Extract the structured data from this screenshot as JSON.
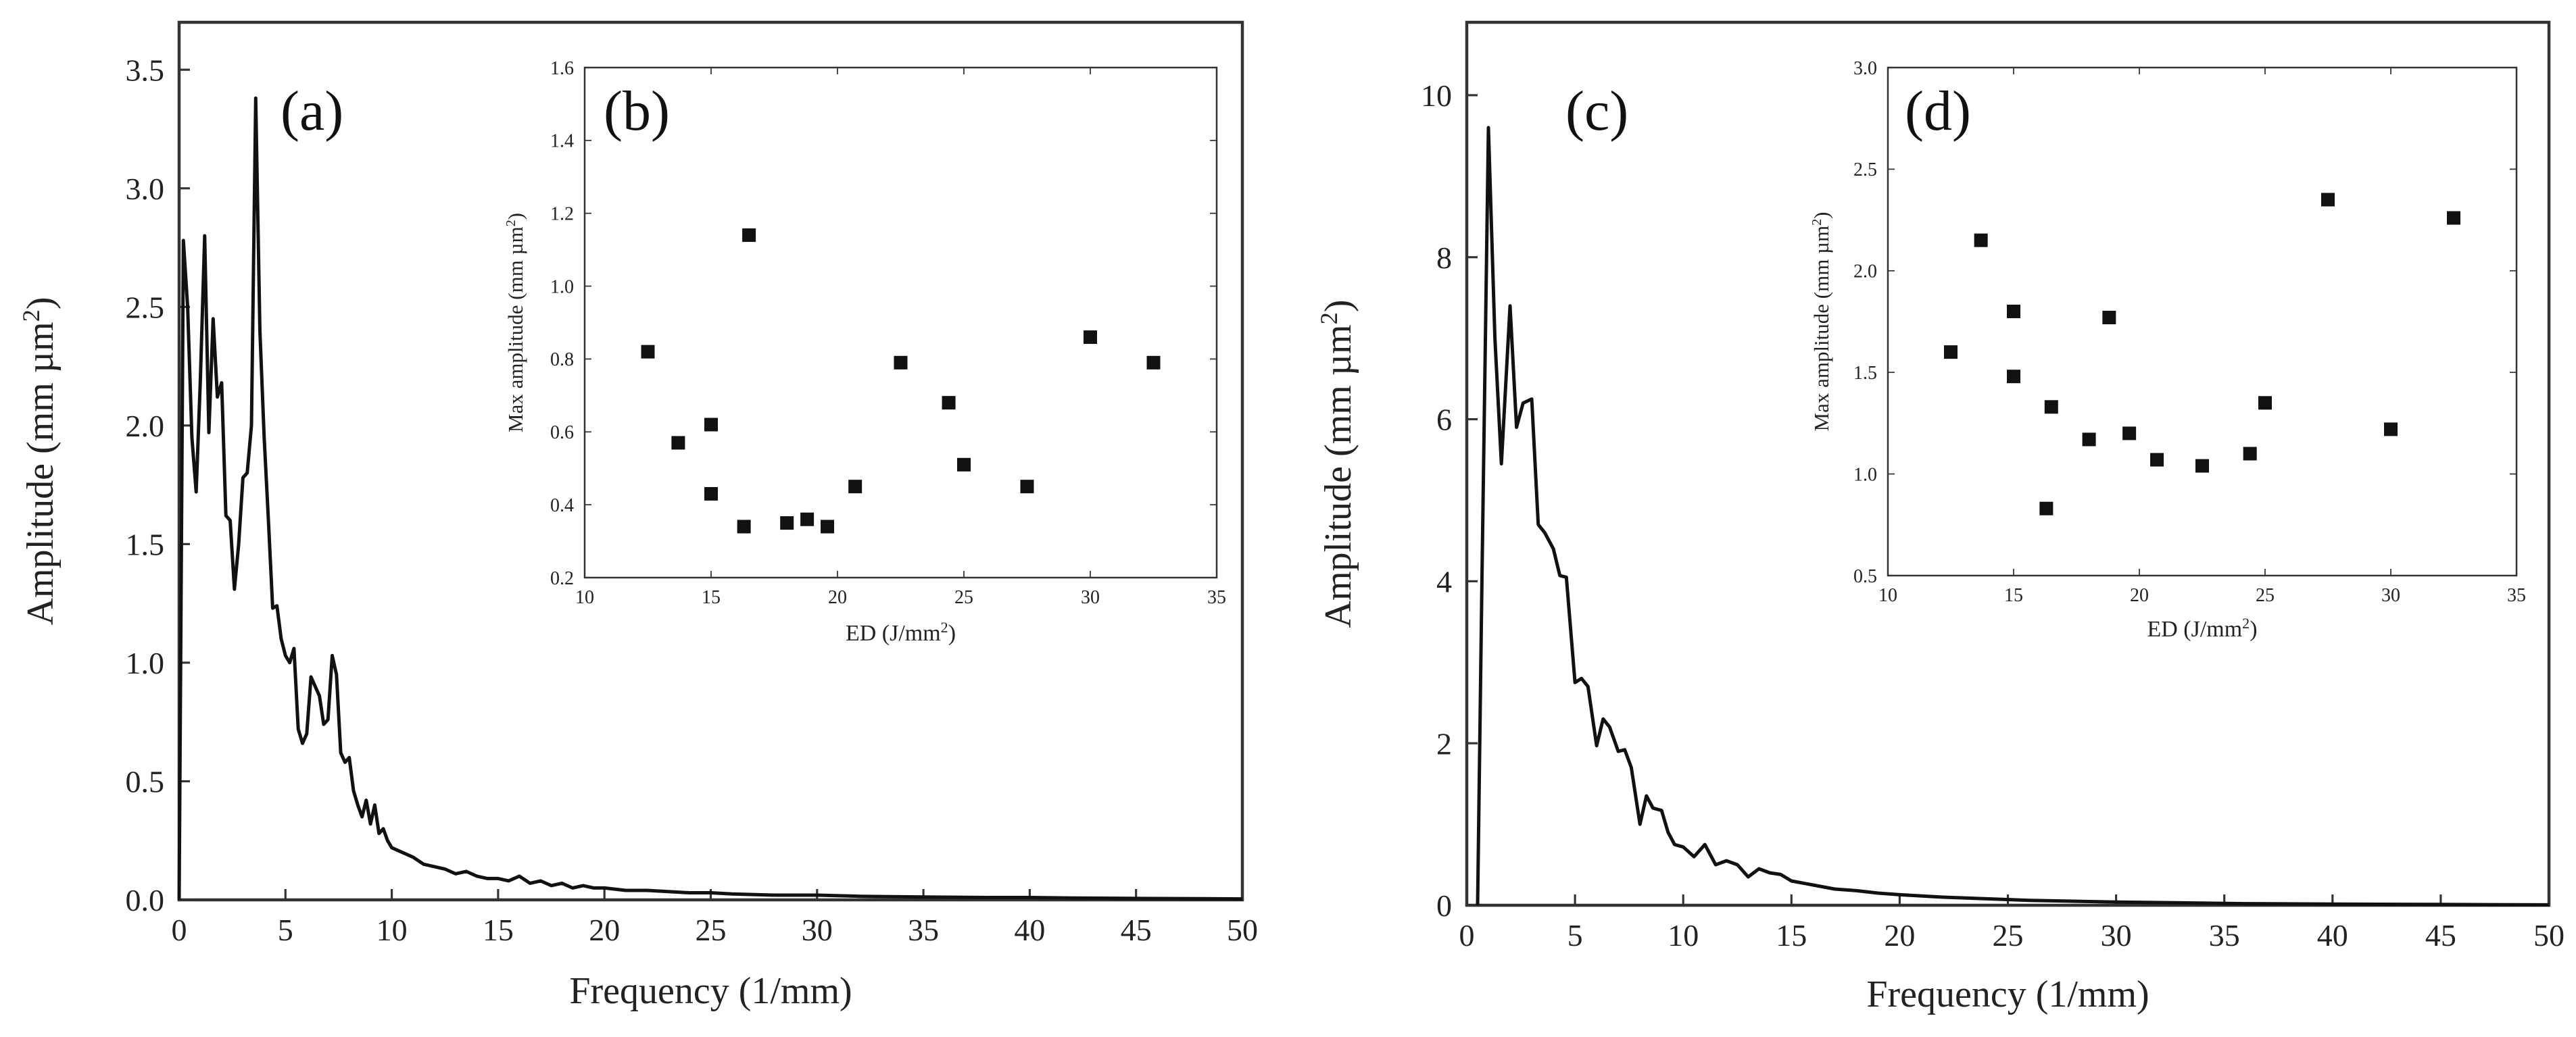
{
  "chart_data": [
    {
      "id": "a",
      "type": "line",
      "panel_label": "(a)",
      "xlabel": "Frequency (1/mm)",
      "ylabel_main": "Amplitude (mm µm",
      "ylabel_sup": "2",
      "ylabel_close": ")",
      "xlim": [
        0,
        50
      ],
      "ylim": [
        0,
        3.7
      ],
      "xticks": [
        0,
        5,
        10,
        15,
        20,
        25,
        30,
        35,
        40,
        45,
        50
      ],
      "yticks": [
        "0.0",
        "0.5",
        "1.0",
        "1.5",
        "2.0",
        "2.5",
        "3.0",
        "3.5"
      ],
      "series": [
        {
          "name": "spectrum",
          "x": [
            0.0,
            0.2,
            0.4,
            0.6,
            0.8,
            1.0,
            1.2,
            1.4,
            1.6,
            1.8,
            2.0,
            2.2,
            2.4,
            2.6,
            2.8,
            3.0,
            3.2,
            3.4,
            3.6,
            3.8,
            4.0,
            4.2,
            4.4,
            4.6,
            4.8,
            5.0,
            5.2,
            5.4,
            5.6,
            5.8,
            6.0,
            6.2,
            6.4,
            6.6,
            6.8,
            7.0,
            7.2,
            7.4,
            7.6,
            7.8,
            8.0,
            8.2,
            8.4,
            8.6,
            8.8,
            9.0,
            9.2,
            9.4,
            9.6,
            9.8,
            10.0,
            10.5,
            11.0,
            11.5,
            12.0,
            12.5,
            13.0,
            13.5,
            14.0,
            14.5,
            15.0,
            15.5,
            16.0,
            16.5,
            17.0,
            17.5,
            18.0,
            18.5,
            19.0,
            19.5,
            20.0,
            21.0,
            22.0,
            23.0,
            24.0,
            25.0,
            26.0,
            28.0,
            30.0,
            32.0,
            35.0,
            38.0,
            40.0,
            42.0,
            45.0,
            48.0,
            50.0
          ],
          "y": [
            0.0,
            2.78,
            2.5,
            1.95,
            1.72,
            2.2,
            2.8,
            1.97,
            2.45,
            2.12,
            2.18,
            1.62,
            1.6,
            1.31,
            1.5,
            1.78,
            1.8,
            2.0,
            3.38,
            2.4,
            1.95,
            1.6,
            1.23,
            1.24,
            1.1,
            1.03,
            1.0,
            1.06,
            0.72,
            0.66,
            0.7,
            0.94,
            0.9,
            0.86,
            0.74,
            0.76,
            1.03,
            0.95,
            0.62,
            0.58,
            0.6,
            0.46,
            0.4,
            0.35,
            0.42,
            0.32,
            0.4,
            0.28,
            0.3,
            0.25,
            0.22,
            0.2,
            0.18,
            0.15,
            0.14,
            0.13,
            0.11,
            0.12,
            0.1,
            0.09,
            0.09,
            0.08,
            0.1,
            0.07,
            0.08,
            0.06,
            0.07,
            0.05,
            0.06,
            0.05,
            0.05,
            0.04,
            0.04,
            0.035,
            0.03,
            0.03,
            0.025,
            0.02,
            0.02,
            0.015,
            0.012,
            0.01,
            0.01,
            0.008,
            0.006,
            0.005,
            0.004
          ]
        }
      ]
    },
    {
      "id": "b",
      "type": "scatter",
      "panel_label": "(b)",
      "xlabel_main": "ED (J/mm",
      "xlabel_sup": "2",
      "xlabel_close": ")",
      "ylabel_main": "Max amplitude (mm µm",
      "ylabel_sup": "2",
      "ylabel_close": ")",
      "xlim": [
        10,
        35
      ],
      "ylim": [
        0.2,
        1.6
      ],
      "xticks": [
        "10",
        "15",
        "20",
        "25",
        "30",
        "35"
      ],
      "yticks": [
        "0.2",
        "0.4",
        "0.6",
        "0.8",
        "1.0",
        "1.2",
        "1.4",
        "1.6"
      ],
      "x": [
        12.5,
        13.7,
        15.0,
        15.0,
        16.3,
        16.5,
        18.0,
        18.8,
        19.6,
        20.7,
        22.5,
        24.4,
        25.0,
        27.5,
        30.0,
        32.5
      ],
      "y": [
        0.82,
        0.57,
        0.62,
        0.43,
        0.34,
        1.14,
        0.35,
        0.36,
        0.34,
        0.45,
        0.79,
        0.68,
        0.51,
        0.45,
        0.86,
        0.79
      ]
    },
    {
      "id": "c",
      "type": "line",
      "panel_label": "(c)",
      "xlabel": "Frequency (1/mm)",
      "ylabel_main": "Amplitude (mm µm",
      "ylabel_sup": "2",
      "ylabel_close": ")",
      "xlim": [
        0,
        50
      ],
      "ylim": [
        0,
        10.9
      ],
      "xticks": [
        0,
        5,
        10,
        15,
        20,
        25,
        30,
        35,
        40,
        45,
        50
      ],
      "yticks": [
        "0",
        "2",
        "4",
        "6",
        "8",
        "10"
      ],
      "series": [
        {
          "name": "spectrum",
          "x": [
            0.5,
            0.7,
            1.0,
            1.3,
            1.6,
            2.0,
            2.3,
            2.6,
            3.0,
            3.3,
            3.6,
            4.0,
            4.3,
            4.6,
            5.0,
            5.3,
            5.6,
            6.0,
            6.3,
            6.6,
            7.0,
            7.3,
            7.6,
            8.0,
            8.3,
            8.6,
            9.0,
            9.3,
            9.6,
            10.0,
            10.5,
            11.0,
            11.5,
            12.0,
            12.5,
            13.0,
            13.5,
            14.0,
            14.5,
            15.0,
            16.0,
            17.0,
            18.0,
            19.0,
            20.0,
            22.0,
            24.0,
            26.0,
            28.0,
            30.0,
            33.0,
            36.0,
            40.0,
            45.0,
            50.0
          ],
          "y": [
            0.0,
            4.0,
            9.6,
            7.0,
            5.45,
            7.4,
            5.9,
            6.2,
            6.25,
            4.7,
            4.6,
            4.4,
            4.07,
            4.05,
            2.75,
            2.8,
            2.7,
            1.97,
            2.3,
            2.2,
            1.9,
            1.92,
            1.7,
            1.0,
            1.35,
            1.2,
            1.17,
            0.9,
            0.75,
            0.72,
            0.6,
            0.75,
            0.5,
            0.55,
            0.5,
            0.35,
            0.45,
            0.4,
            0.38,
            0.3,
            0.25,
            0.2,
            0.18,
            0.15,
            0.13,
            0.1,
            0.08,
            0.06,
            0.05,
            0.04,
            0.03,
            0.02,
            0.015,
            0.01,
            0.005
          ]
        }
      ]
    },
    {
      "id": "d",
      "type": "scatter",
      "panel_label": "(d)",
      "xlabel_main": "ED (J/mm",
      "xlabel_sup": "2",
      "xlabel_close": ")",
      "ylabel_main": "Max amplitude (mm µm",
      "ylabel_sup": "2",
      "ylabel_close": ")",
      "xlim": [
        10,
        35
      ],
      "ylim": [
        0.5,
        3.0
      ],
      "xticks": [
        "10",
        "15",
        "20",
        "25",
        "30",
        "35"
      ],
      "yticks": [
        "0.5",
        "1.0",
        "1.5",
        "2.0",
        "2.5",
        "3.0"
      ],
      "x": [
        12.5,
        13.7,
        15.0,
        15.0,
        16.3,
        16.5,
        18.0,
        18.8,
        19.6,
        20.7,
        22.5,
        24.4,
        25.0,
        27.5,
        30.0,
        32.5
      ],
      "y": [
        1.6,
        2.15,
        1.8,
        1.48,
        0.83,
        1.33,
        1.17,
        1.77,
        1.2,
        1.07,
        1.04,
        1.1,
        1.35,
        2.35,
        1.22,
        2.26
      ]
    }
  ]
}
